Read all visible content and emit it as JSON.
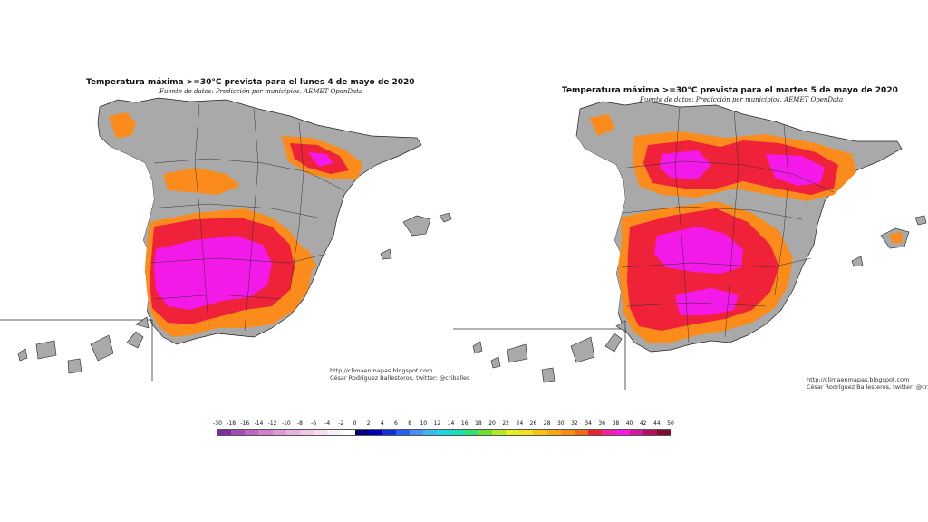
{
  "maps": [
    {
      "title": "Temperatura máxima >=30°C prevista para el lunes 4 de mayo de 2020",
      "subtitle": "Fuente de datos: Predicción por municipios. AEMET OpenData",
      "credit_url": "http://climaenmapas.blogspot.com",
      "credit_author": "César Rodríguez Ballesteros, twitter: @criballes"
    },
    {
      "title": "Temperatura máxima >=30°C prevista para el martes 5 de mayo de 2020",
      "subtitle": "Fuente de datos: Predicción por municipios. AEMET OpenData",
      "credit_url": "http://climaenmapas.blogspot.com",
      "credit_author": "César Rodríguez Ballesteros, twitter: @criballes"
    }
  ],
  "legend": {
    "labels": [
      "-30",
      "-18",
      "-16",
      "-14",
      "-12",
      "-10",
      "-8",
      "-6",
      "-4",
      "-2",
      "0",
      "2",
      "4",
      "6",
      "8",
      "10",
      "12",
      "14",
      "16",
      "18",
      "20",
      "22",
      "24",
      "26",
      "28",
      "30",
      "32",
      "34",
      "36",
      "38",
      "40",
      "42",
      "44",
      "50"
    ],
    "colors": [
      "#7b2fa0",
      "#a24bb4",
      "#c164c2",
      "#d27fcd",
      "#de9ad6",
      "#e7b3de",
      "#efc9e6",
      "#f5ddef",
      "#faeef7",
      "#ffffff",
      "#00007a",
      "#0000b4",
      "#1030d8",
      "#2860ee",
      "#4a90f4",
      "#3cb8ee",
      "#20d4e0",
      "#18e0b8",
      "#30e070",
      "#70e030",
      "#b0e828",
      "#e4f020",
      "#f4e020",
      "#f6c418",
      "#f6a816",
      "#f68c14",
      "#f06a10",
      "#e8242c",
      "#f020a0",
      "#f818e0",
      "#d8189a",
      "#b0105e",
      "#800c30"
    ]
  },
  "colors": {
    "no_data": "#a9a9a9",
    "t30": "#fb8c1b",
    "t34": "#f0223a",
    "t36": "#f319e8"
  }
}
